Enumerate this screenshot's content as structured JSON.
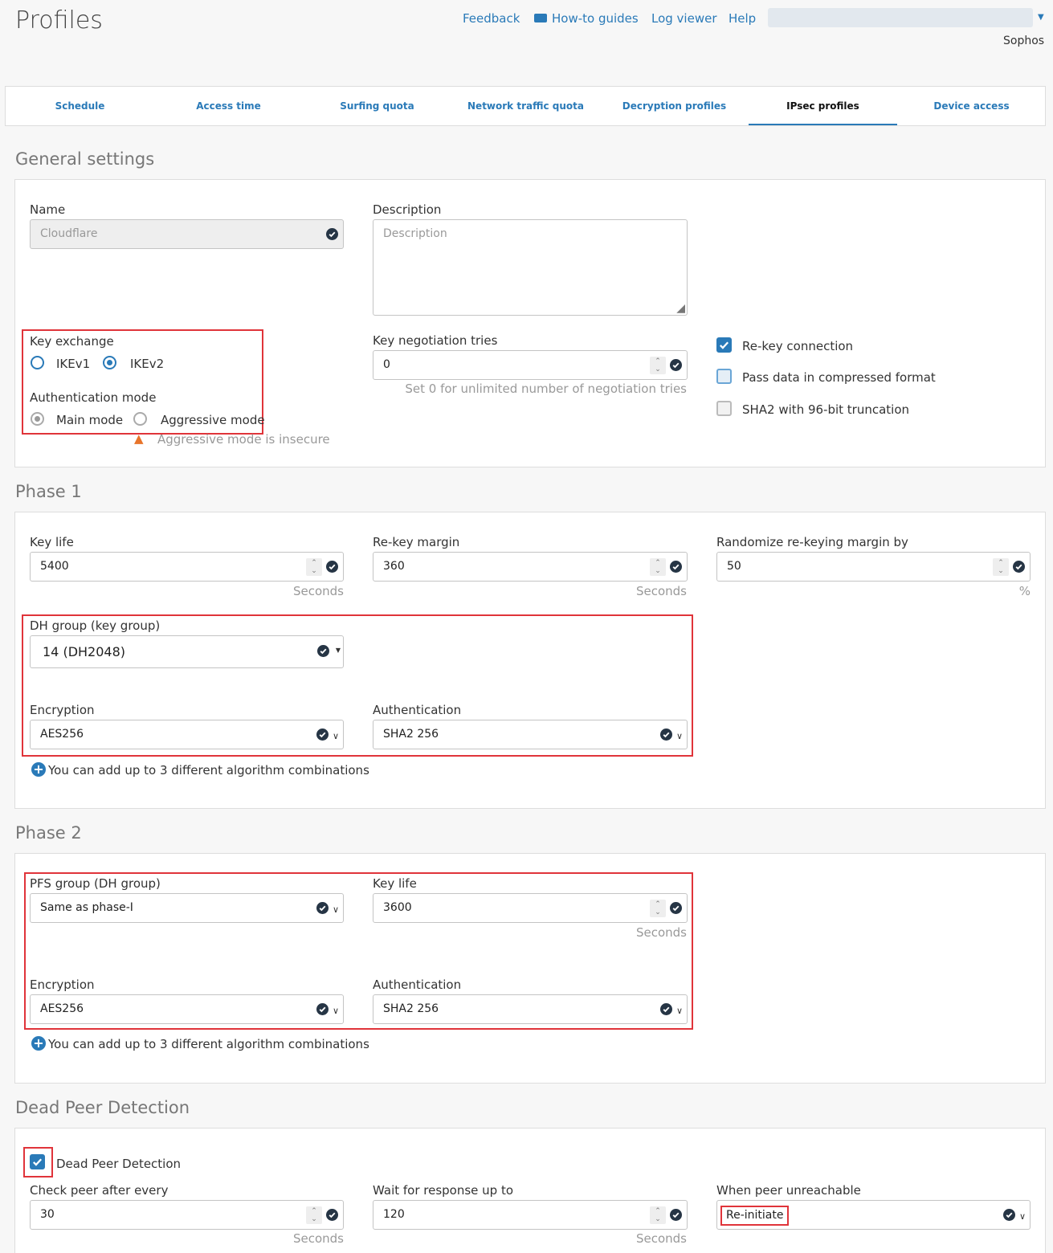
{
  "header": {
    "title": "Profiles",
    "links": [
      "Feedback",
      "How-to guides",
      "Log viewer",
      "Help"
    ],
    "user_org": "Sophos"
  },
  "tabs": [
    "Schedule",
    "Access time",
    "Surfing quota",
    "Network traffic quota",
    "Decryption profiles",
    "IPsec profiles",
    "Device access"
  ],
  "active_tab": "IPsec profiles",
  "general": {
    "heading": "General settings",
    "name_label": "Name",
    "name_value": "Cloudflare",
    "desc_label": "Description",
    "desc_placeholder": "Description",
    "key_exchange_label": "Key exchange",
    "ikev1": "IKEv1",
    "ikev2": "IKEv2",
    "key_exchange_selected": "IKEv2",
    "auth_mode_label": "Authentication mode",
    "main_mode": "Main mode",
    "aggressive_mode": "Aggressive mode",
    "auth_mode_selected": "Main mode",
    "aggressive_warning": "Aggressive mode is insecure",
    "tries_label": "Key negotiation tries",
    "tries_value": "0",
    "tries_hint": "Set 0 for unlimited number of negotiation tries",
    "rekey": "Re-key connection",
    "rekey_checked": true,
    "compress": "Pass data in compressed format",
    "compress_checked": true,
    "sha2_96": "SHA2 with 96-bit truncation",
    "sha2_96_checked": false
  },
  "phase1": {
    "heading": "Phase 1",
    "key_life_label": "Key life",
    "key_life": "5400",
    "key_life_unit": "Seconds",
    "rekey_margin_label": "Re-key margin",
    "rekey_margin": "360",
    "rekey_margin_unit": "Seconds",
    "randomize_label": "Randomize re-keying margin by",
    "randomize": "50",
    "randomize_unit": "%",
    "dh_label": "DH group (key group)",
    "dh_value": "14 (DH2048)",
    "enc_label": "Encryption",
    "enc_value": "AES256",
    "auth_label": "Authentication",
    "auth_value": "SHA2 256",
    "add_note": "You can add up to 3 different algorithm combinations"
  },
  "phase2": {
    "heading": "Phase 2",
    "pfs_label": "PFS group (DH group)",
    "pfs_value": "Same as phase-I",
    "key_life_label": "Key life",
    "key_life": "3600",
    "key_life_unit": "Seconds",
    "enc_label": "Encryption",
    "enc_value": "AES256",
    "auth_label": "Authentication",
    "auth_value": "SHA2 256",
    "add_note": "You can add up to 3 different algorithm combinations"
  },
  "dpd": {
    "heading": "Dead Peer Detection",
    "enable_label": "Dead Peer Detection",
    "enabled": true,
    "check_label": "Check peer after every",
    "check_value": "30",
    "check_unit": "Seconds",
    "wait_label": "Wait for response up to",
    "wait_value": "120",
    "wait_unit": "Seconds",
    "unreach_label": "When peer unreachable",
    "unreach_value": "Re-initiate"
  }
}
